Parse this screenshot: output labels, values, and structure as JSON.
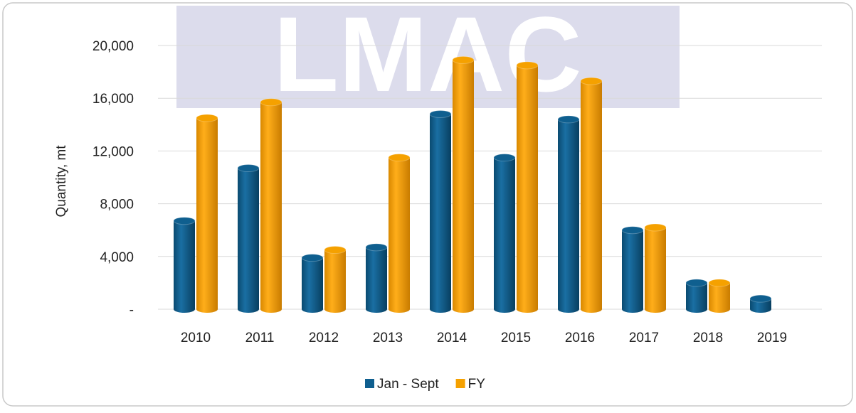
{
  "chart_data": {
    "type": "bar",
    "watermark": "LMAC",
    "ylabel": "Quantity, mt",
    "categories": [
      "2010",
      "2011",
      "2012",
      "2013",
      "2014",
      "2015",
      "2016",
      "2017",
      "2018",
      "2019"
    ],
    "series": [
      {
        "name": "Jan - Sept",
        "color": "#0f5f8f",
        "values": [
          6700,
          10700,
          3900,
          4700,
          14800,
          11500,
          14400,
          6000,
          2000,
          800
        ]
      },
      {
        "name": "FY",
        "color": "#f5a100",
        "values": [
          14500,
          15700,
          4500,
          11500,
          18900,
          18500,
          17300,
          6200,
          2000,
          null
        ]
      }
    ],
    "ylim": [
      0,
      20000
    ],
    "yticks": [
      {
        "value": 0,
        "label": "-"
      },
      {
        "value": 4000,
        "label": "4,000"
      },
      {
        "value": 8000,
        "label": "8,000"
      },
      {
        "value": 12000,
        "label": "12,000"
      },
      {
        "value": 16000,
        "label": "16,000"
      },
      {
        "value": 20000,
        "label": "20,000"
      }
    ],
    "grid": true,
    "legend": "bottom"
  }
}
